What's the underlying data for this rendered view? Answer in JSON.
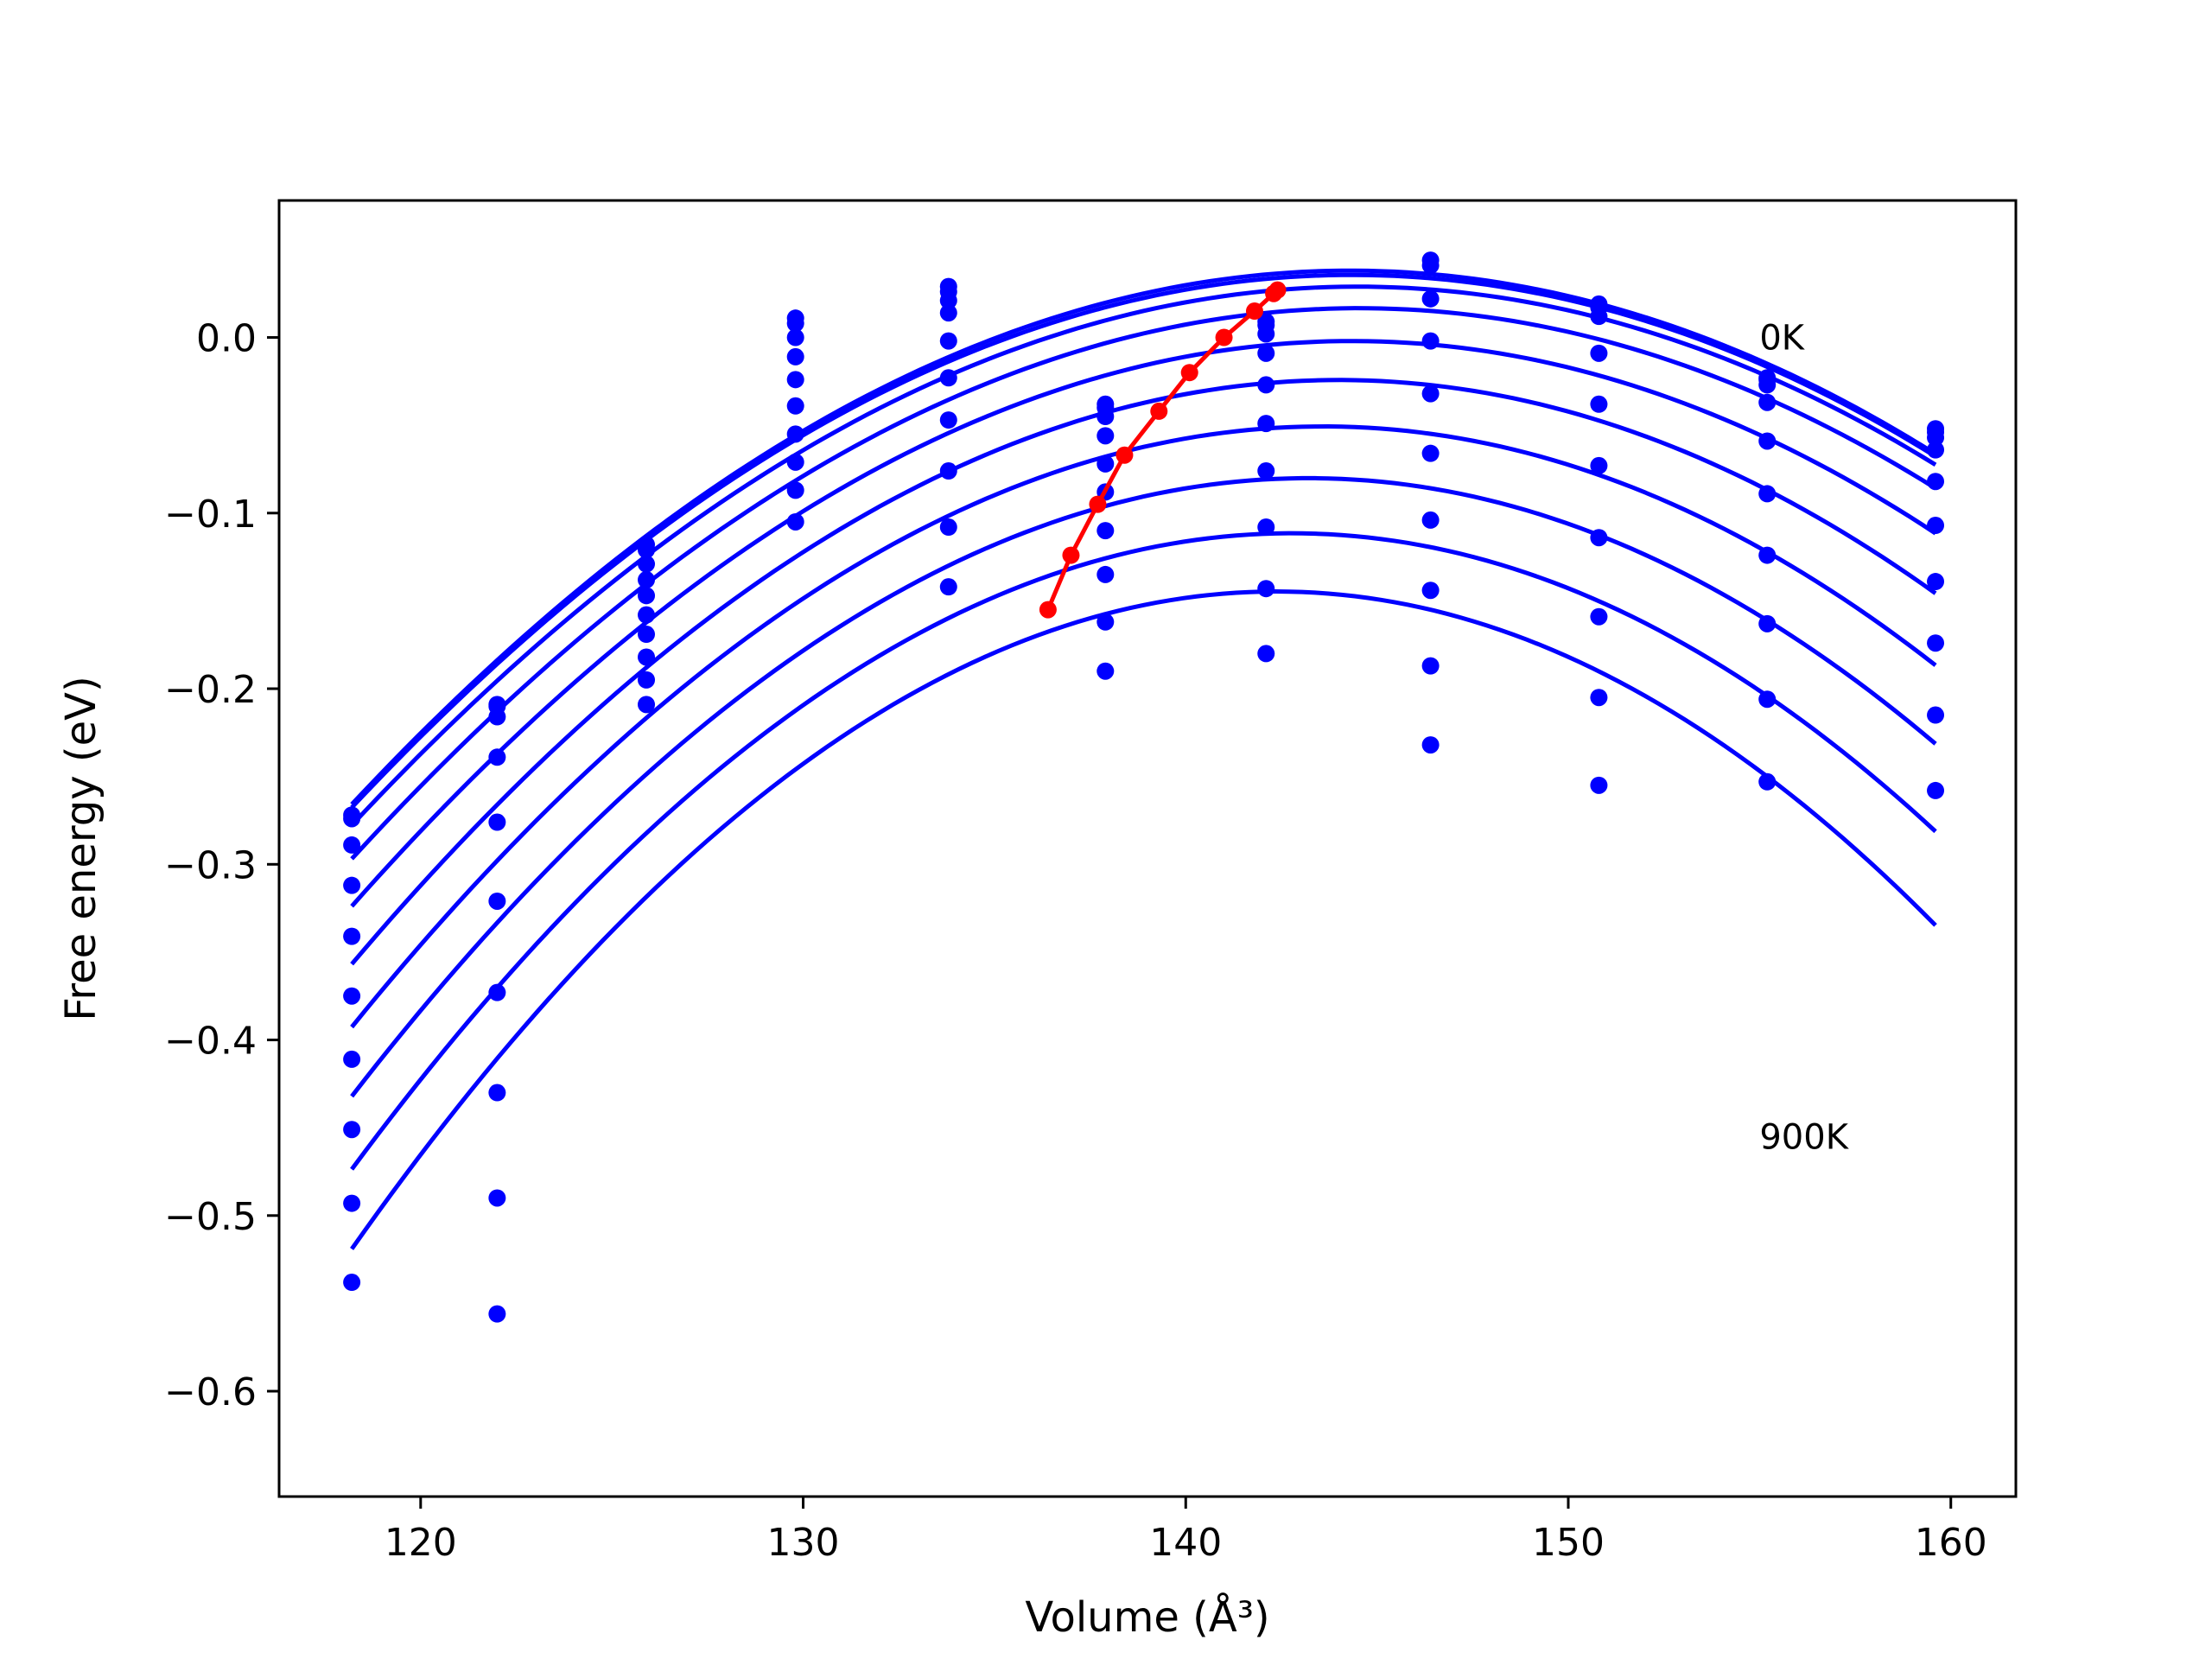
{
  "chart_data": {
    "type": "scatter",
    "title": "",
    "xlabel": "Volume (Å³)",
    "ylabel": "Free energy (eV)",
    "xlim": [
      116.3,
      161.7
    ],
    "ylim": [
      -0.66,
      0.078
    ],
    "xticks": [
      120,
      130,
      140,
      150,
      160
    ],
    "yticks": [
      0.0,
      -0.1,
      -0.2,
      -0.3,
      -0.4,
      -0.5,
      -0.6
    ],
    "xtick_labels": [
      "120",
      "130",
      "140",
      "150",
      "160"
    ],
    "ytick_labels": [
      "0.0",
      "−0.1",
      "−0.2",
      "−0.3",
      "−0.4",
      "−0.5",
      "−0.6"
    ],
    "grid": false,
    "annotations": [
      {
        "text": "0K",
        "x": 155.0,
        "y": 0.0
      },
      {
        "text": "900K",
        "x": 155.0,
        "y": -0.455
      }
    ],
    "points_color": "#0000ff",
    "curve_color": "#0000ff",
    "minima_color": "#ff0000",
    "fit_x_range": [
      118.2,
      159.6
    ],
    "volumes": [
      118.2,
      122.0,
      125.9,
      129.8,
      133.8,
      137.9,
      142.1,
      146.4,
      150.8,
      155.2,
      159.6
    ],
    "temperatures": [
      {
        "label": "0K",
        "energies": [
          -0.272,
          -0.209,
          -0.118,
          0.011,
          0.029,
          -0.038,
          0.009,
          0.044,
          0.019,
          -0.023,
          -0.052
        ]
      },
      {
        "label": "100K",
        "energies": [
          -0.274,
          -0.21,
          -0.121,
          0.008,
          0.026,
          -0.04,
          0.007,
          0.041,
          0.017,
          -0.024,
          -0.054
        ]
      },
      {
        "label": "200K",
        "energies": [
          -0.289,
          -0.216,
          -0.129,
          0.0,
          0.021,
          -0.045,
          0.002,
          0.022,
          0.012,
          -0.027,
          -0.057
        ]
      },
      {
        "label": "300K",
        "energies": [
          -0.312,
          -0.239,
          -0.138,
          -0.011,
          0.014,
          -0.056,
          -0.009,
          -0.002,
          -0.009,
          -0.037,
          -0.064
        ]
      },
      {
        "label": "400K",
        "energies": [
          -0.341,
          -0.276,
          -0.147,
          -0.024,
          -0.002,
          -0.072,
          -0.027,
          -0.032,
          -0.038,
          -0.059,
          -0.082
        ]
      },
      {
        "label": "500K",
        "energies": [
          -0.375,
          -0.321,
          -0.158,
          -0.039,
          -0.023,
          -0.088,
          -0.049,
          -0.066,
          -0.073,
          -0.089,
          -0.107
        ]
      },
      {
        "label": "600K",
        "energies": [
          -0.411,
          -0.373,
          -0.169,
          -0.055,
          -0.047,
          -0.11,
          -0.076,
          -0.104,
          -0.114,
          -0.124,
          -0.139
        ]
      },
      {
        "label": "700K",
        "energies": [
          -0.451,
          -0.43,
          -0.182,
          -0.071,
          -0.076,
          -0.135,
          -0.108,
          -0.144,
          -0.159,
          -0.163,
          -0.174
        ]
      },
      {
        "label": "800K",
        "energies": [
          -0.493,
          -0.49,
          -0.195,
          -0.087,
          -0.108,
          -0.162,
          -0.143,
          -0.187,
          -0.205,
          -0.206,
          -0.215
        ]
      },
      {
        "label": "900K",
        "energies": [
          -0.538,
          -0.556,
          -0.209,
          -0.105,
          -0.142,
          -0.19,
          -0.18,
          -0.232,
          -0.255,
          -0.253,
          -0.258
        ]
      }
    ],
    "minima": {
      "x": [
        142.4,
        142.3,
        141.8,
        141.0,
        140.1,
        139.3,
        138.4,
        137.7,
        137.0,
        136.4
      ],
      "y": [
        0.027,
        0.025,
        0.015,
        0.0,
        -0.02,
        -0.042,
        -0.067,
        -0.095,
        -0.124,
        -0.155
      ]
    }
  }
}
